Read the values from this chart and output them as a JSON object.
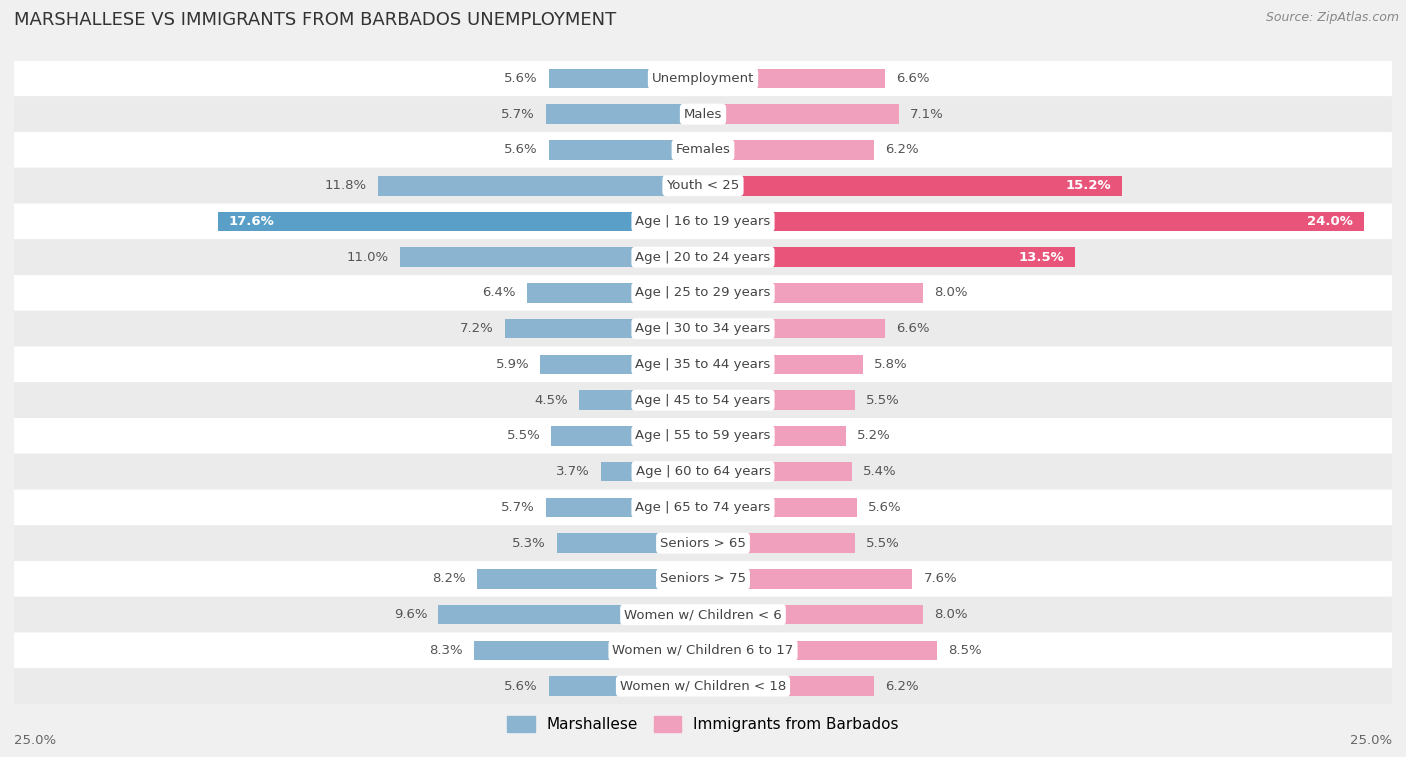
{
  "title": "MARSHALLESE VS IMMIGRANTS FROM BARBADOS UNEMPLOYMENT",
  "source": "Source: ZipAtlas.com",
  "categories": [
    "Unemployment",
    "Males",
    "Females",
    "Youth < 25",
    "Age | 16 to 19 years",
    "Age | 20 to 24 years",
    "Age | 25 to 29 years",
    "Age | 30 to 34 years",
    "Age | 35 to 44 years",
    "Age | 45 to 54 years",
    "Age | 55 to 59 years",
    "Age | 60 to 64 years",
    "Age | 65 to 74 years",
    "Seniors > 65",
    "Seniors > 75",
    "Women w/ Children < 6",
    "Women w/ Children 6 to 17",
    "Women w/ Children < 18"
  ],
  "marshallese": [
    5.6,
    5.7,
    5.6,
    11.8,
    17.6,
    11.0,
    6.4,
    7.2,
    5.9,
    4.5,
    5.5,
    3.7,
    5.7,
    5.3,
    8.2,
    9.6,
    8.3,
    5.6
  ],
  "barbados": [
    6.6,
    7.1,
    6.2,
    15.2,
    24.0,
    13.5,
    8.0,
    6.6,
    5.8,
    5.5,
    5.2,
    5.4,
    5.6,
    5.5,
    7.6,
    8.0,
    8.5,
    6.2
  ],
  "marshallese_color": "#8ab4cf",
  "barbados_color": "#f0a0bc",
  "highlight_marshallese_color": "#5a9fc8",
  "highlight_barbados_color": "#e8547a",
  "background_color": "#f0f0f0",
  "row_odd_color": "#ffffff",
  "row_even_color": "#ebebeb",
  "label_fontsize": 9.5,
  "title_fontsize": 13,
  "source_fontsize": 9,
  "max_val": 25.0,
  "bar_height": 0.55,
  "label_inside_threshold": 12.0
}
